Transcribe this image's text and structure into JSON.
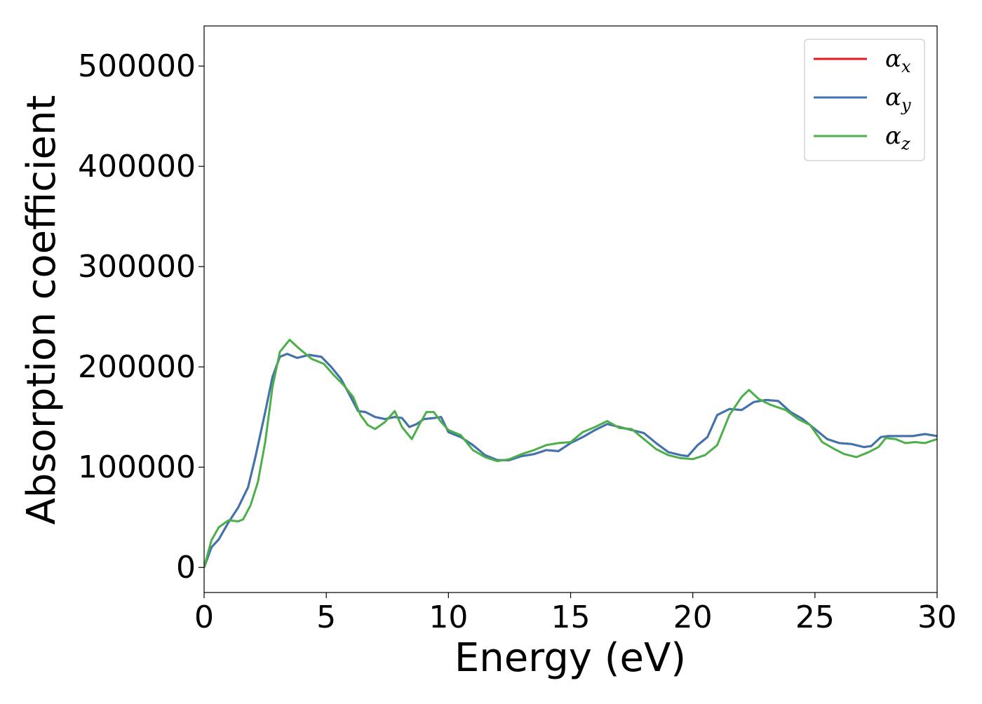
{
  "chart_data": {
    "type": "line",
    "xlabel": "Energy (eV)",
    "ylabel": "Absorption coefficient",
    "xlim": [
      0,
      30
    ],
    "ylim": [
      -25000,
      540000
    ],
    "xticks": [
      0,
      5,
      10,
      15,
      20,
      25,
      30
    ],
    "yticks": [
      0,
      100000,
      200000,
      300000,
      400000,
      500000
    ],
    "grid": false,
    "legend_position": "top-right",
    "series": [
      {
        "name": "α_x",
        "label_main": "α",
        "label_sub": "x",
        "color": "#e41a1c",
        "x": [
          0,
          0.3,
          0.6,
          1.0,
          1.4,
          1.8,
          2.1,
          2.5,
          2.8,
          3.1,
          3.4,
          3.8,
          4.3,
          4.8,
          5.2,
          5.6,
          6.0,
          6.3,
          6.6,
          7.0,
          7.4,
          7.8,
          8.1,
          8.4,
          8.7,
          9.0,
          9.4,
          9.7,
          10.0,
          10.5,
          11.0,
          11.5,
          12.0,
          12.5,
          13.0,
          13.5,
          14.0,
          14.5,
          15.0,
          15.5,
          16.0,
          16.5,
          17.0,
          17.5,
          18.0,
          18.5,
          19.0,
          19.5,
          19.8,
          20.2,
          20.6,
          21.0,
          21.5,
          22.0,
          22.5,
          23.0,
          23.5,
          24.0,
          24.5,
          25.0,
          25.5,
          26.0,
          26.5,
          27.0,
          27.3,
          27.7,
          28.0,
          28.5,
          29.0,
          29.5,
          30.0
        ],
        "y": [
          0,
          20000,
          28000,
          45000,
          60000,
          80000,
          110000,
          155000,
          190000,
          210000,
          213000,
          209000,
          212000,
          210000,
          200000,
          188000,
          170000,
          156000,
          155000,
          150000,
          148000,
          150000,
          149000,
          140000,
          143000,
          148000,
          149000,
          150000,
          135000,
          130000,
          122000,
          112000,
          107000,
          107000,
          111000,
          113000,
          117000,
          116000,
          124000,
          130000,
          137000,
          143000,
          140000,
          137000,
          134000,
          124000,
          115000,
          112000,
          111000,
          122000,
          130000,
          152000,
          158000,
          157000,
          165000,
          167000,
          166000,
          155000,
          148000,
          138000,
          128000,
          124000,
          123000,
          120000,
          121000,
          130000,
          131000,
          131000,
          131000,
          133000,
          131000
        ]
      },
      {
        "name": "α_y",
        "label_main": "α",
        "label_sub": "y",
        "color": "#3d75b0",
        "x": [
          0,
          0.3,
          0.6,
          1.0,
          1.4,
          1.8,
          2.1,
          2.5,
          2.8,
          3.1,
          3.4,
          3.8,
          4.3,
          4.8,
          5.2,
          5.6,
          6.0,
          6.3,
          6.6,
          7.0,
          7.4,
          7.8,
          8.1,
          8.4,
          8.7,
          9.0,
          9.4,
          9.7,
          10.0,
          10.5,
          11.0,
          11.5,
          12.0,
          12.5,
          13.0,
          13.5,
          14.0,
          14.5,
          15.0,
          15.5,
          16.0,
          16.5,
          17.0,
          17.5,
          18.0,
          18.5,
          19.0,
          19.5,
          19.8,
          20.2,
          20.6,
          21.0,
          21.5,
          22.0,
          22.5,
          23.0,
          23.5,
          24.0,
          24.5,
          25.0,
          25.5,
          26.0,
          26.5,
          27.0,
          27.3,
          27.7,
          28.0,
          28.5,
          29.0,
          29.5,
          30.0
        ],
        "y": [
          0,
          20000,
          28000,
          45000,
          60000,
          80000,
          110000,
          155000,
          190000,
          210000,
          213000,
          209000,
          212000,
          210000,
          200000,
          188000,
          170000,
          156000,
          155000,
          150000,
          148000,
          150000,
          149000,
          140000,
          143000,
          148000,
          149000,
          150000,
          135000,
          130000,
          122000,
          112000,
          107000,
          107000,
          111000,
          113000,
          117000,
          116000,
          124000,
          130000,
          137000,
          143000,
          140000,
          137000,
          134000,
          124000,
          115000,
          112000,
          111000,
          122000,
          130000,
          152000,
          158000,
          157000,
          165000,
          167000,
          166000,
          155000,
          148000,
          138000,
          128000,
          124000,
          123000,
          120000,
          121000,
          130000,
          131000,
          131000,
          131000,
          133000,
          131000
        ]
      },
      {
        "name": "α_z",
        "label_main": "α",
        "label_sub": "z",
        "color": "#4daf4a",
        "x": [
          0,
          0.3,
          0.6,
          1.0,
          1.4,
          1.6,
          1.9,
          2.2,
          2.5,
          2.8,
          3.1,
          3.5,
          3.9,
          4.4,
          4.9,
          5.3,
          5.7,
          6.1,
          6.4,
          6.7,
          7.0,
          7.4,
          7.8,
          8.1,
          8.5,
          8.8,
          9.1,
          9.4,
          9.7,
          10.0,
          10.5,
          11.0,
          11.5,
          12.0,
          12.5,
          13.0,
          13.5,
          14.0,
          14.5,
          15.0,
          15.5,
          16.0,
          16.5,
          17.0,
          17.5,
          18.0,
          18.5,
          19.0,
          19.5,
          20.0,
          20.5,
          21.0,
          21.5,
          22.0,
          22.3,
          22.7,
          23.2,
          23.8,
          24.3,
          24.8,
          25.3,
          25.8,
          26.2,
          26.7,
          27.2,
          27.6,
          27.9,
          28.3,
          28.7,
          29.1,
          29.5,
          30.0
        ],
        "y": [
          0,
          27000,
          40000,
          47000,
          46000,
          48000,
          62000,
          85000,
          125000,
          180000,
          215000,
          227000,
          218000,
          208000,
          203000,
          192000,
          182000,
          170000,
          152000,
          142000,
          138000,
          145000,
          156000,
          140000,
          128000,
          142000,
          155000,
          155000,
          145000,
          137000,
          132000,
          117000,
          110000,
          106000,
          108000,
          113000,
          117000,
          122000,
          124000,
          125000,
          135000,
          140000,
          146000,
          139000,
          138000,
          128000,
          118000,
          112000,
          109000,
          108000,
          112000,
          122000,
          152000,
          170000,
          177000,
          168000,
          162000,
          157000,
          148000,
          142000,
          125000,
          118000,
          113000,
          110000,
          115000,
          120000,
          129000,
          128000,
          124000,
          125000,
          124000,
          128000
        ]
      }
    ]
  }
}
